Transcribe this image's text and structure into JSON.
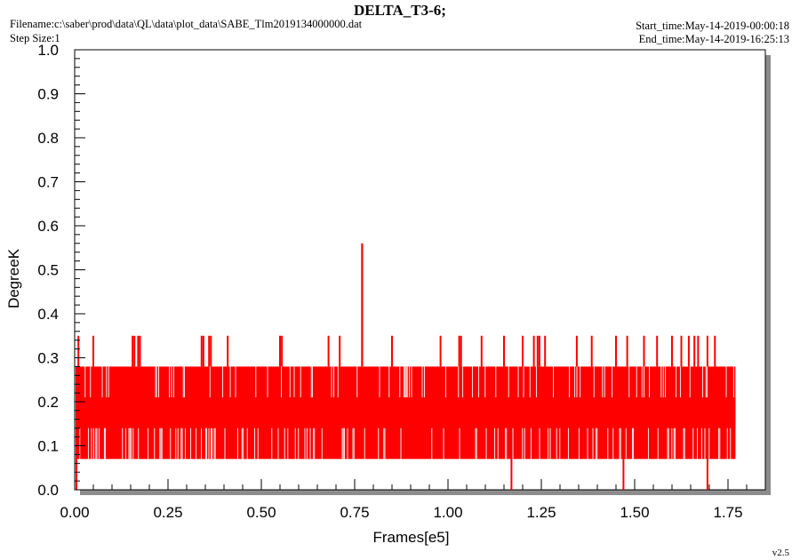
{
  "header": {
    "title": "DELTA_T3-6;",
    "filename": "Filename:c:\\saber\\prod\\data\\QL\\data\\plot_data\\SABE_Tlm2019134000000.dat",
    "step_size": "Step Size:1",
    "start_time": "Start_time:May-14-2019-00:00:18",
    "end_time": "End_time:May-14-2019-16:25:13",
    "version": "v2.5"
  },
  "colors": {
    "series": "#ff0000",
    "shadow": "#8c8c8c",
    "axes": "#000000"
  },
  "chart_data": {
    "type": "line",
    "title": "DELTA_T3-6;",
    "xlabel": "Frames[e5]",
    "ylabel": "DegreeK",
    "xlim": [
      0,
      1.85
    ],
    "ylim": [
      0.0,
      1.0
    ],
    "x_ticks": [
      "0.00",
      "0.25",
      "0.50",
      "0.75",
      "1.00",
      "1.25",
      "1.50",
      "1.75"
    ],
    "y_ticks": [
      "0.0",
      "0.1",
      "0.2",
      "0.3",
      "0.4",
      "0.5",
      "0.6",
      "0.7",
      "0.8",
      "0.9",
      "1.0"
    ],
    "grid": false,
    "series": [
      {
        "x_range": [
          0.0,
          1.77
        ],
        "levels": [
          0.0,
          0.07,
          0.14,
          0.21,
          0.28,
          0.35,
          0.56
        ],
        "band": [
          0.07,
          0.28
        ],
        "spikes_035": [
          0.01,
          0.05,
          0.155,
          0.16,
          0.17,
          0.175,
          0.34,
          0.345,
          0.36,
          0.365,
          0.41,
          0.55,
          0.555,
          0.68,
          0.71,
          0.85,
          0.98,
          1.03,
          1.035,
          1.09,
          1.15,
          1.2,
          1.23,
          1.24,
          1.245,
          1.26,
          1.345,
          1.385,
          1.45,
          1.48,
          1.525,
          1.56,
          1.6,
          1.625,
          1.645,
          1.66,
          1.67,
          1.695,
          1.715
        ],
        "spikes_056": [
          0.77
        ],
        "dips_000": [
          1.17,
          1.47,
          1.695
        ]
      }
    ]
  }
}
